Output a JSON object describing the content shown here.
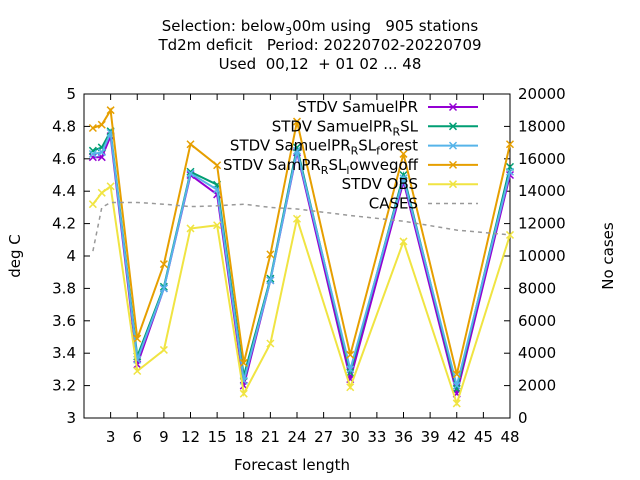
{
  "chart_data": {
    "type": "line",
    "title_lines": [
      "Selection: below₃ 00m using   905 stations",
      "Td2m deficit   Period: 20220702-20220709",
      "Used  00,12  + 01 02 ... 48"
    ],
    "xlabel": "Forecast length",
    "ylabel": "deg C",
    "y2label": "No cases",
    "x": [
      1,
      2,
      3,
      6,
      9,
      12,
      15,
      18,
      21,
      24,
      30,
      36,
      42,
      48
    ],
    "xticks": [
      3,
      6,
      9,
      12,
      15,
      18,
      21,
      24,
      27,
      30,
      33,
      36,
      39,
      42,
      45,
      48
    ],
    "xlim": [
      0,
      48
    ],
    "ylim": [
      3,
      5
    ],
    "yticks": [
      "3",
      "3.2",
      "3.4",
      "3.6",
      "3.8",
      "4",
      "4.2",
      "4.4",
      "4.6",
      "4.8",
      "5"
    ],
    "y2lim": [
      0,
      20000
    ],
    "y2ticks": [
      "0",
      "2000",
      "4000",
      "6000",
      "8000",
      "10000",
      "12000",
      "14000",
      "16000",
      "18000",
      "20000"
    ],
    "legend_position": "top-right",
    "series": [
      {
        "name": "STDV SamuelPR",
        "color": "#9400d3",
        "marker": "x",
        "axis": "y1",
        "values": [
          4.61,
          4.61,
          4.74,
          3.33,
          3.8,
          4.5,
          4.38,
          3.2,
          3.85,
          4.64,
          3.24,
          4.46,
          3.15,
          4.5
        ]
      },
      {
        "name": "STDV SamuelPR_R SL",
        "color": "#009e73",
        "marker": "x",
        "axis": "y1",
        "values": [
          4.65,
          4.67,
          4.77,
          3.38,
          3.81,
          4.52,
          4.44,
          3.26,
          3.86,
          4.67,
          3.28,
          4.5,
          3.18,
          4.55
        ]
      },
      {
        "name": "STDV SamuelPR_R SL_f orest",
        "color": "#56b4e9",
        "marker": "x",
        "axis": "y1",
        "values": [
          4.63,
          4.64,
          4.76,
          3.36,
          3.8,
          4.51,
          4.41,
          3.23,
          3.85,
          4.65,
          3.3,
          4.48,
          3.2,
          4.52
        ]
      },
      {
        "name": "STDV SamPR_R SL_l owvegoff",
        "color": "#e69f00",
        "marker": "x",
        "axis": "y1",
        "values": [
          4.79,
          4.81,
          4.9,
          3.49,
          3.95,
          4.69,
          4.56,
          3.34,
          4.01,
          4.83,
          3.39,
          4.63,
          3.27,
          4.69
        ]
      },
      {
        "name": "STDV OBS",
        "color": "#f0e442",
        "marker": "x",
        "axis": "y1",
        "values": [
          4.32,
          4.39,
          4.43,
          3.29,
          3.42,
          4.17,
          4.19,
          3.15,
          3.46,
          4.23,
          3.19,
          4.09,
          3.09,
          4.13
        ]
      },
      {
        "name": "CASES",
        "color": "#999999",
        "marker": "none",
        "dash": true,
        "axis": "y2",
        "values": [
          10300,
          13000,
          13300,
          13300,
          13200,
          13050,
          13100,
          13200,
          13000,
          12900,
          12500,
          12150,
          11600,
          11300
        ]
      }
    ]
  }
}
